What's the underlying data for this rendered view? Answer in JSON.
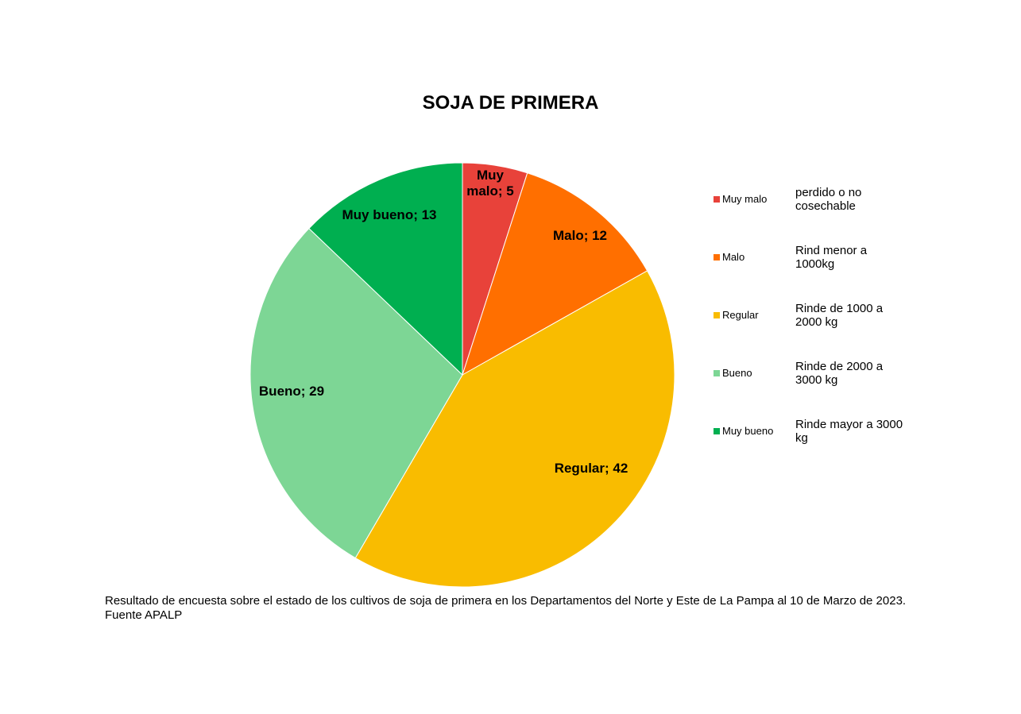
{
  "chart_data": {
    "type": "pie",
    "title": "SOJA DE PRIMERA",
    "slices": [
      {
        "name": "Muy malo",
        "value": 5,
        "label_line1": "Muy",
        "label_line2": "malo; 5",
        "color": "#E8423A",
        "description": "perdido o no cosechable"
      },
      {
        "name": "Malo",
        "value": 12,
        "label_line1": "Malo; 12",
        "label_line2": "",
        "color": "#FF6F00",
        "description": "Rind menor a 1000kg"
      },
      {
        "name": "Regular",
        "value": 42,
        "label_line1": "Regular; 42",
        "label_line2": "",
        "color": "#F9BC00",
        "description": "Rinde de 1000 a 2000 kg"
      },
      {
        "name": "Bueno",
        "value": 29,
        "label_line1": "Bueno; 29",
        "label_line2": "",
        "color": "#7DD695",
        "description": "Rinde de 2000 a 3000 kg"
      },
      {
        "name": "Muy bueno",
        "value": 13,
        "label_line1": "Muy bueno; 13",
        "label_line2": "",
        "color": "#00AF50",
        "description": "Rinde mayor a 3000 kg"
      }
    ],
    "legend_position": "right"
  },
  "footnote": "Resultado de encuesta sobre el estado de los cultivos de soja de primera en los Departamentos del Norte y Este de La Pampa al 10 de Marzo de 2023. Fuente APALP"
}
